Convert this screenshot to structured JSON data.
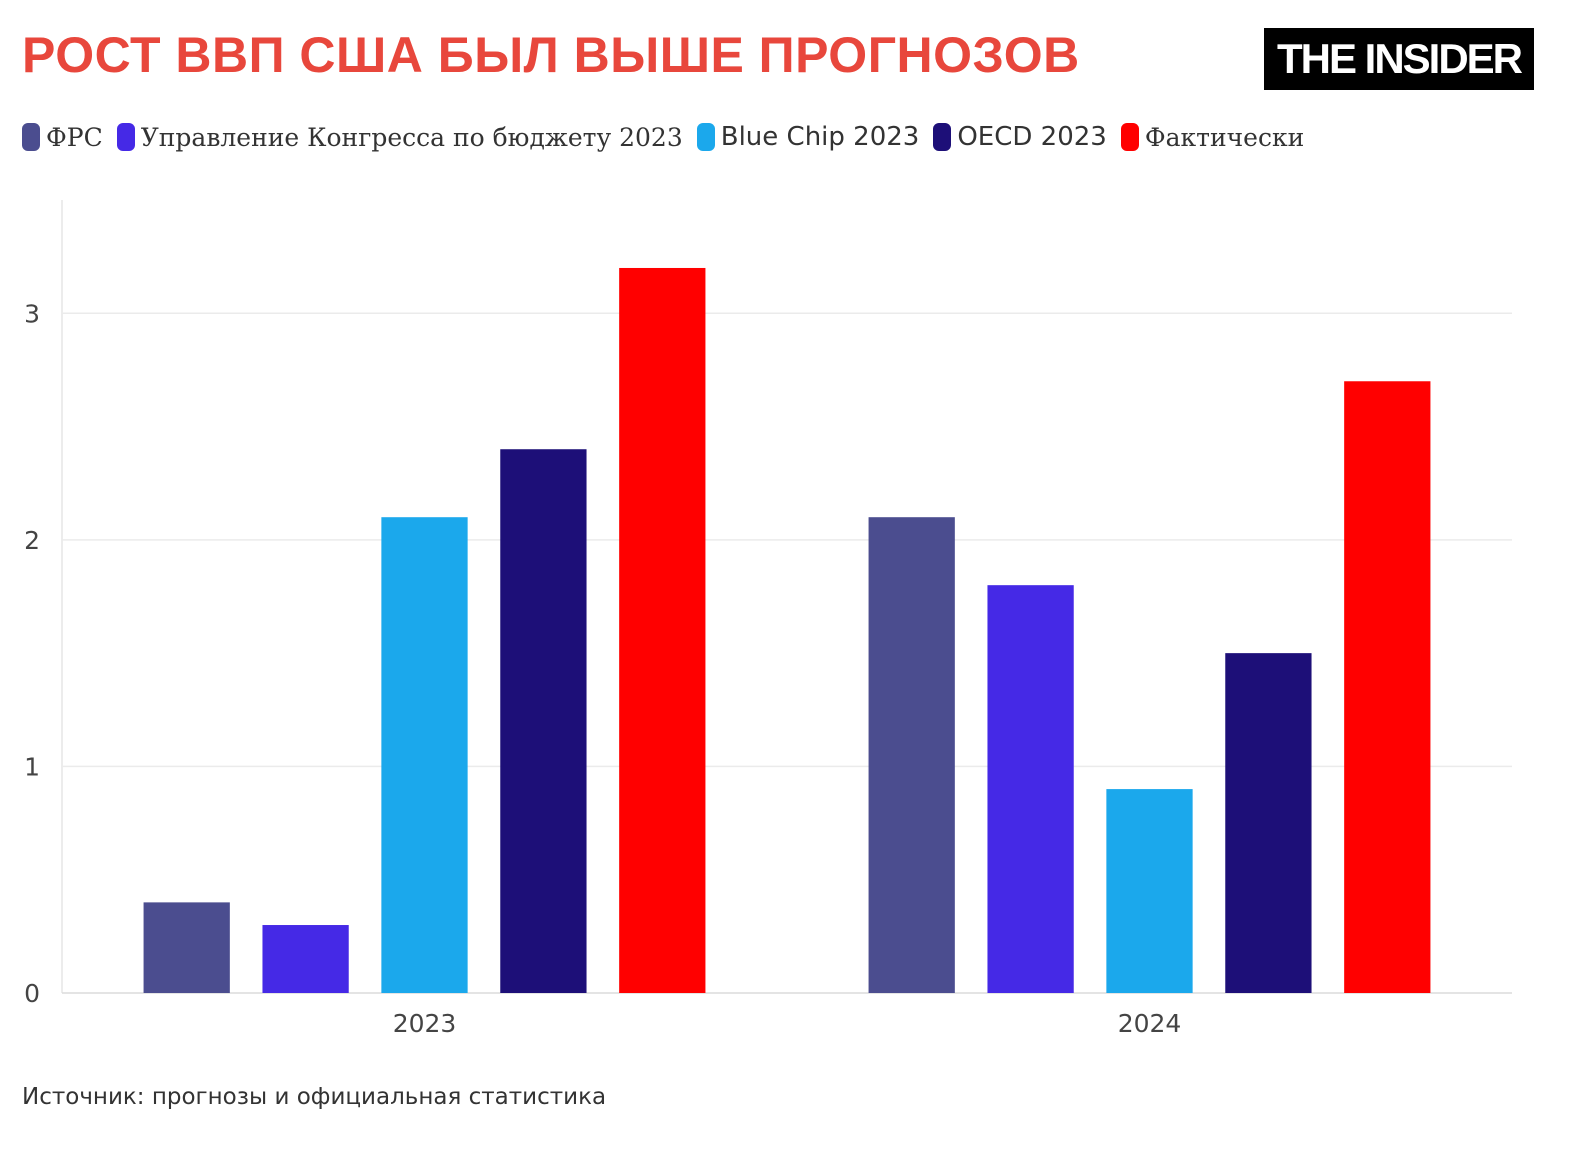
{
  "title": "РОСТ ВВП США БЫЛ ВЫШЕ ПРОГНОЗОВ",
  "logo": "THE INSIDER",
  "source": "Источник: прогнозы и официальная статистика",
  "chart_data": {
    "type": "bar",
    "categories": [
      "2023",
      "2024"
    ],
    "series": [
      {
        "name": "ФРС",
        "color": "#4b4d8f",
        "values": [
          0.4,
          2.1
        ]
      },
      {
        "name": "Управление Конгресса по бюджету 2023",
        "color": "#4529e6",
        "values": [
          0.3,
          1.8
        ]
      },
      {
        "name": "Blue Chip 2023",
        "color": "#1ba8ec",
        "values": [
          2.1,
          0.9
        ]
      },
      {
        "name": "OECD 2023",
        "color": "#1d0f78",
        "values": [
          2.4,
          1.5
        ]
      },
      {
        "name": "Фактически",
        "color": "#ff0000",
        "values": [
          3.2,
          2.7
        ]
      }
    ],
    "yticks": [
      0,
      1,
      2,
      3
    ],
    "ylim": [
      0,
      3.5
    ],
    "grid": true,
    "legend": "top-left"
  }
}
